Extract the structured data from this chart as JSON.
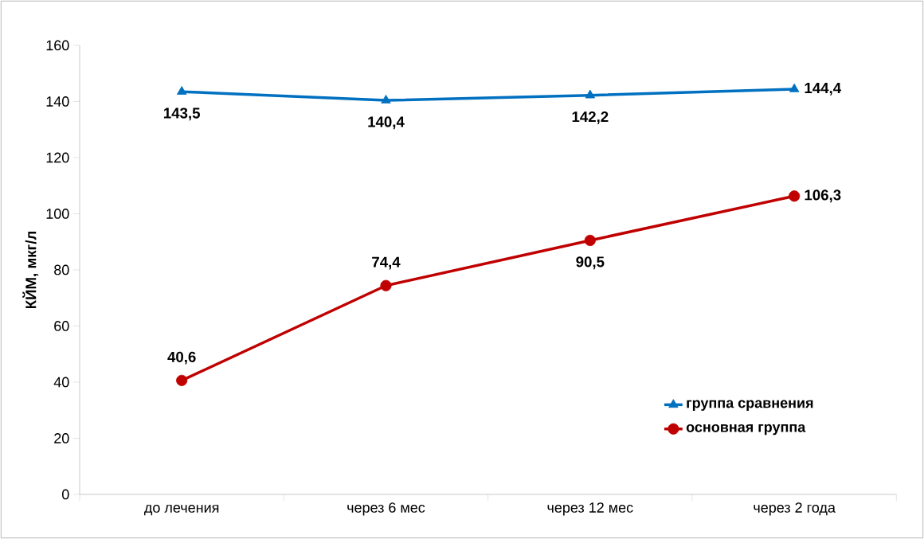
{
  "chart_data": {
    "type": "line",
    "ylabel": "КЙМ, мкг/л",
    "categories": [
      "до лечения",
      "через 6 мес",
      "через 12 мес",
      "через 2 года"
    ],
    "series": [
      {
        "name": "группа сравнения",
        "color": "#0070c0",
        "marker": "triangle",
        "values": [
          143.5,
          140.4,
          142.2,
          144.4
        ],
        "value_labels": [
          "143,5",
          "140,4",
          "142,2",
          "144,4"
        ]
      },
      {
        "name": "основная группа",
        "color": "#c00000",
        "marker": "circle",
        "values": [
          40.6,
          74.4,
          90.5,
          106.3
        ],
        "value_labels": [
          "40,6",
          "74,4",
          "90,5",
          "106,3"
        ]
      }
    ],
    "ylim": [
      0,
      160
    ],
    "yticks": [
      0,
      20,
      40,
      60,
      80,
      100,
      120,
      140,
      160
    ],
    "grid": false,
    "legend": "bottom right",
    "line_style": "solid"
  }
}
